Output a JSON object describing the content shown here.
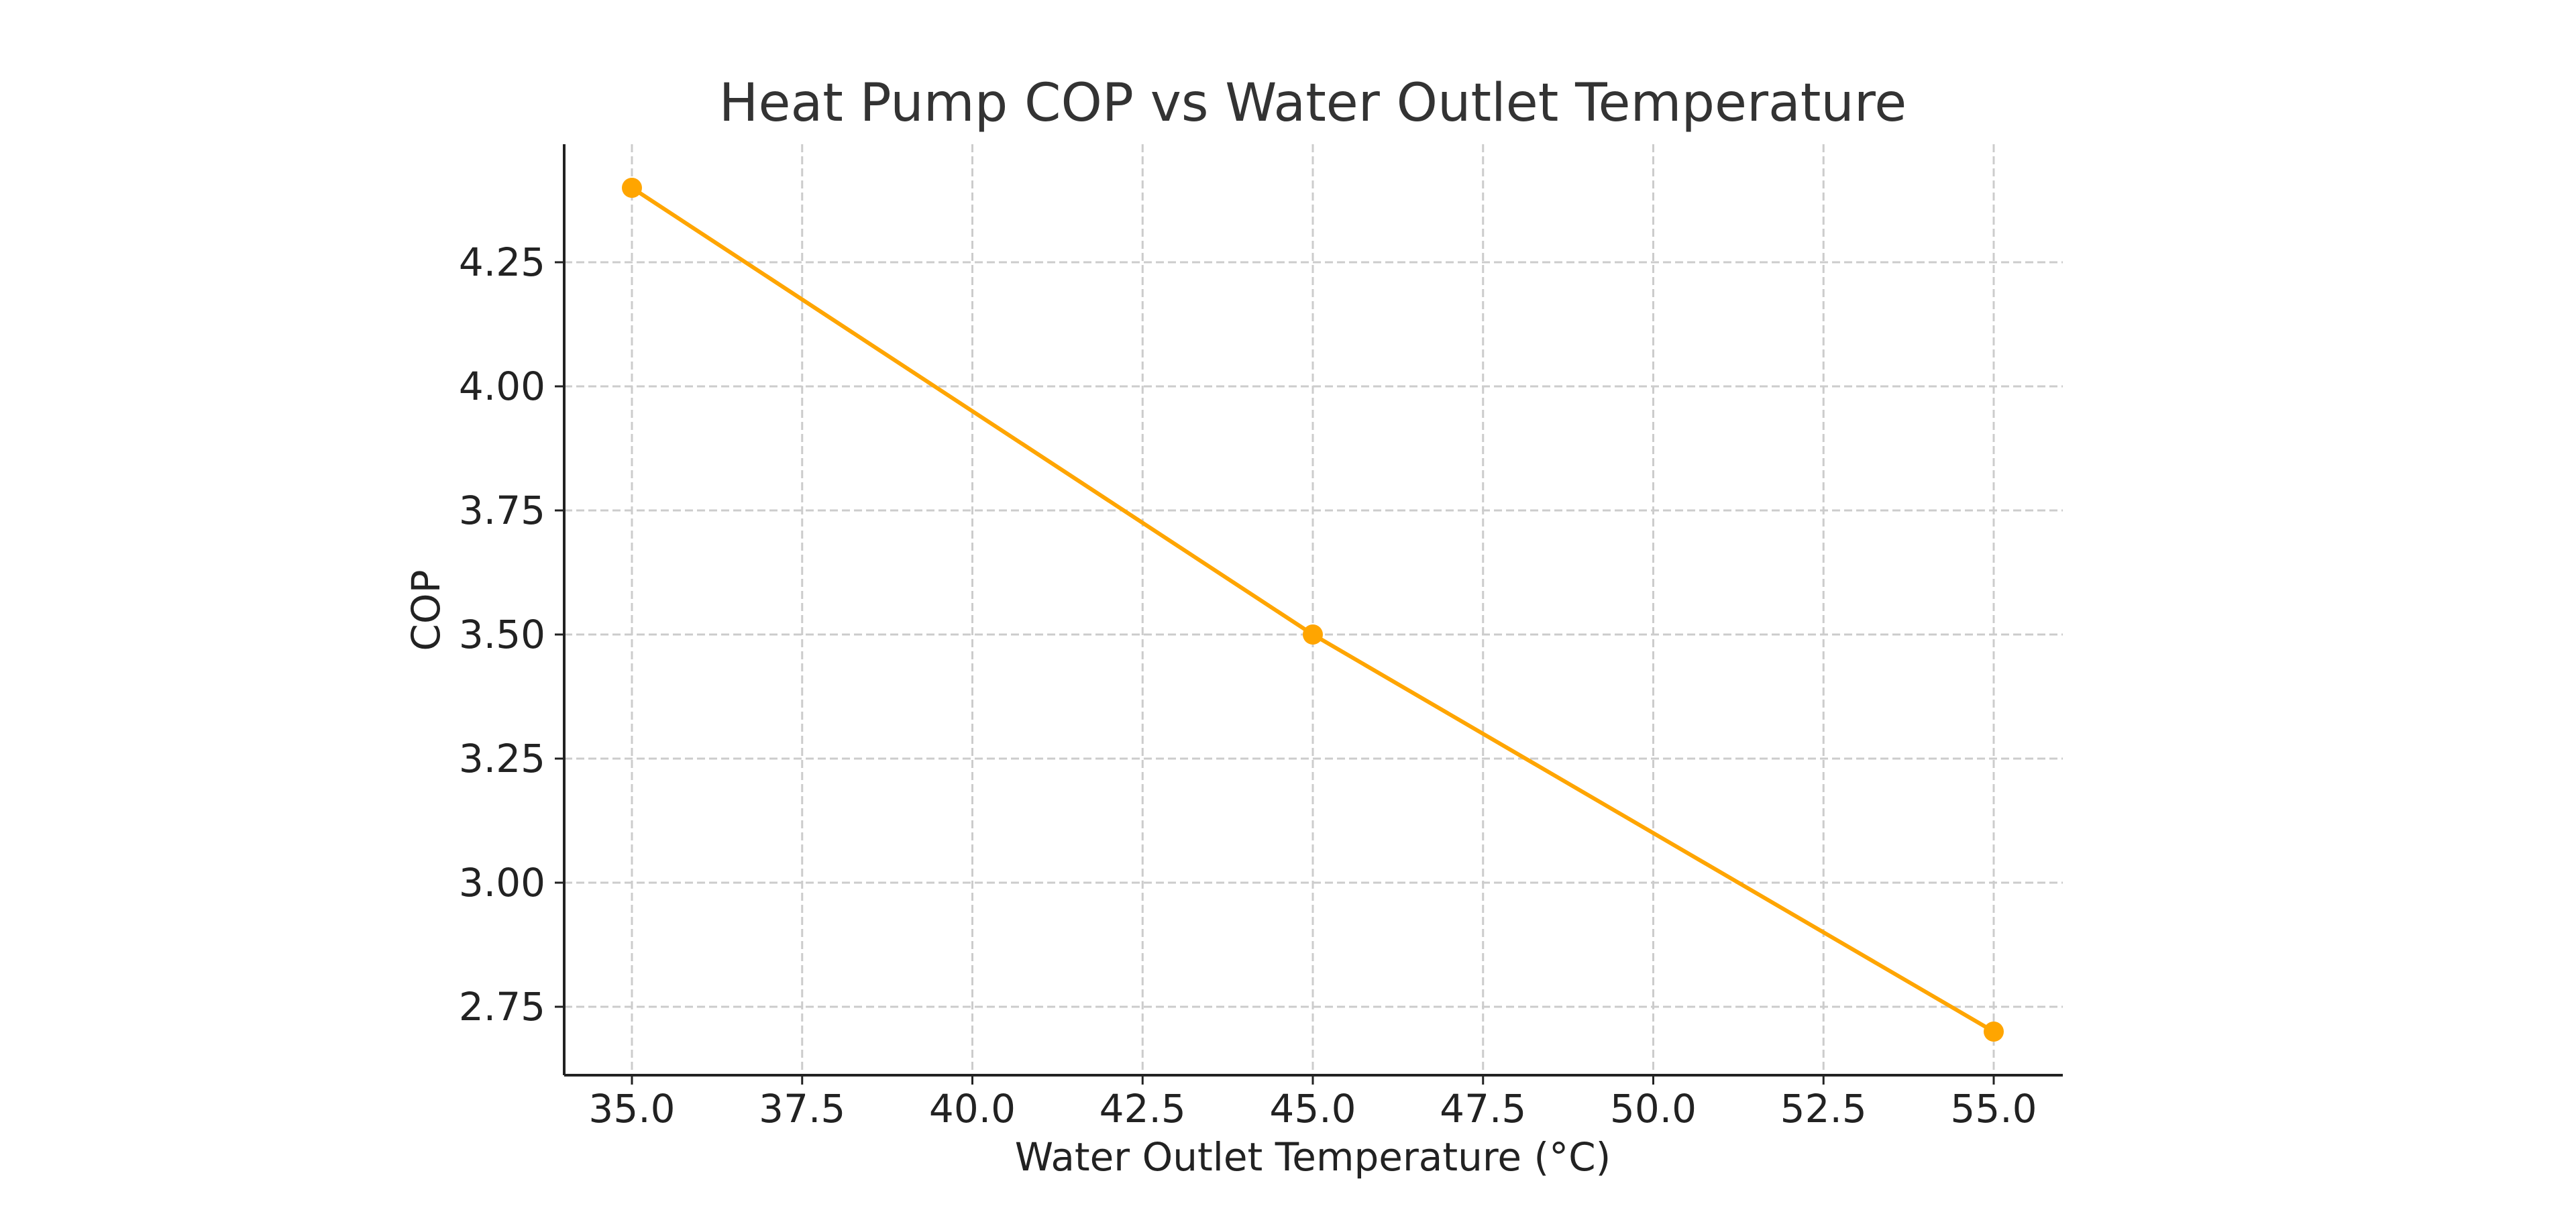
{
  "chart_data": {
    "type": "line",
    "title": "Heat Pump COP vs Water Outlet Temperature",
    "xlabel": "Water Outlet Temperature (°C)",
    "ylabel": "COP",
    "x": [
      35,
      45,
      55
    ],
    "series": [
      {
        "values": [
          4.4,
          3.5,
          2.7
        ],
        "color": "#FFA500",
        "marker": "circle"
      }
    ],
    "xlim": [
      34,
      56
    ],
    "ylim": [
      2.61,
      4.49
    ],
    "xticks": [
      "35.0",
      "37.5",
      "40.0",
      "42.5",
      "45.0",
      "47.5",
      "50.0",
      "52.5",
      "55.0"
    ],
    "yticks": [
      "2.75",
      "3.00",
      "3.25",
      "3.50",
      "3.75",
      "4.00",
      "4.25"
    ],
    "grid": true
  }
}
